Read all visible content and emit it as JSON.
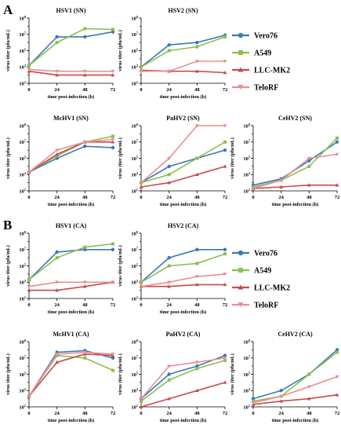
{
  "figure": {
    "panels": [
      {
        "letter": "A"
      },
      {
        "letter": "B"
      }
    ],
    "legend": {
      "entries": [
        {
          "name": "Vero76",
          "color": "#3b78b8",
          "marker": "circle"
        },
        {
          "name": "A549",
          "color": "#8bbf4e",
          "marker": "square"
        },
        {
          "name": "LLC-MK2",
          "color": "#c94a4a",
          "marker": "triangle"
        },
        {
          "name": "TeloRF",
          "color": "#e88e93",
          "marker": "triangle-down"
        }
      ]
    }
  },
  "chart_data": [
    {
      "panel": "A",
      "type": "line",
      "title": "HSV1 (SN)",
      "xlabel": "time post-infection (h)",
      "ylabel": "virus titer (pfu/mL)",
      "x": [
        0,
        24,
        48,
        72
      ],
      "xticks": [
        "0",
        "24",
        "48",
        "72"
      ],
      "ylog": true,
      "ylim_exp": [
        1,
        9
      ],
      "yticks_exp": [
        1,
        3,
        5,
        7,
        9
      ],
      "grid": false,
      "series": [
        {
          "name": "Vero76",
          "values": [
            1500.0,
            5000000.0,
            5000000.0,
            20000000.0
          ]
        },
        {
          "name": "A549",
          "values": [
            1500.0,
            1000000.0,
            50000000.0,
            40000000.0
          ]
        },
        {
          "name": "LLC-MK2",
          "values": [
            300.0,
            100.0,
            100.0,
            100.0
          ]
        },
        {
          "name": "TeloRF",
          "values": [
            500.0,
            300.0,
            300.0,
            300.0
          ]
        }
      ]
    },
    {
      "panel": "A",
      "type": "line",
      "title": "HSV2 (SN)",
      "xlabel": "time post-infection (h)",
      "ylabel": "virus titer (pfu/mL)",
      "x": [
        0,
        24,
        48,
        72
      ],
      "xticks": [
        "0",
        "24",
        "48",
        "72"
      ],
      "ylog": true,
      "ylim_exp": [
        1,
        9
      ],
      "yticks_exp": [
        1,
        3,
        5,
        7,
        9
      ],
      "grid": false,
      "series": [
        {
          "name": "Vero76",
          "values": [
            1000.0,
            500000.0,
            1000000.0,
            8000000.0
          ]
        },
        {
          "name": "A549",
          "values": [
            1000.0,
            100000.0,
            300000.0,
            5000000.0
          ]
        },
        {
          "name": "LLC-MK2",
          "values": [
            400.0,
            300.0,
            300.0,
            200.0
          ]
        },
        {
          "name": "TeloRF",
          "values": [
            300.0,
            300.0,
            5000.0,
            5000.0
          ]
        }
      ]
    },
    {
      "panel": "A",
      "type": "line",
      "title": "McHV1 (SN)",
      "xlabel": "time post-infection (h)",
      "ylabel": "virus titer (pfu/mL)",
      "x": [
        0,
        24,
        48,
        72
      ],
      "xticks": [
        "0",
        "24",
        "48",
        "72"
      ],
      "ylog": true,
      "ylim_exp": [
        1,
        9
      ],
      "yticks_exp": [
        1,
        3,
        5,
        7,
        9
      ],
      "grid": false,
      "series": [
        {
          "name": "Vero76",
          "values": [
            2000.0,
            100000.0,
            3000000.0,
            2000000.0
          ]
        },
        {
          "name": "A549",
          "values": [
            2000.0,
            200000.0,
            10000000.0,
            50000000.0
          ]
        },
        {
          "name": "LLC-MK2",
          "values": [
            2000.0,
            300000.0,
            10000000.0,
            10000000.0
          ]
        },
        {
          "name": "TeloRF",
          "values": [
            2000.0,
            1000000.0,
            10000000.0,
            20000000.0
          ]
        }
      ]
    },
    {
      "panel": "A",
      "type": "line",
      "title": "PaHV2 (SN)",
      "xlabel": "time post-infection (h)",
      "ylabel": "virus titer (pfu/mL)",
      "x": [
        0,
        24,
        48,
        72
      ],
      "xticks": [
        "0",
        "24",
        "48",
        "72"
      ],
      "ylog": true,
      "ylim_exp": [
        1,
        9
      ],
      "yticks_exp": [
        1,
        3,
        5,
        7,
        9
      ],
      "grid": false,
      "series": [
        {
          "name": "Vero76",
          "values": [
            100.0,
            10000.0,
            100000.0,
            1000000.0
          ]
        },
        {
          "name": "A549",
          "values": [
            100.0,
            1000.0,
            100000.0,
            10000000.0
          ]
        },
        {
          "name": "LLC-MK2",
          "values": [
            30.0,
            100.0,
            1000.0,
            10000.0
          ]
        },
        {
          "name": "TeloRF",
          "values": [
            100.0,
            100000.0,
            1000000000.0,
            1000000000.0
          ]
        }
      ]
    },
    {
      "panel": "A",
      "type": "line",
      "title": "CeHV2 (SN)",
      "xlabel": "time post-infection (h)",
      "ylabel": "virus titer (pfu/mL)",
      "x": [
        0,
        24,
        48,
        72
      ],
      "xticks": [
        "0",
        "24",
        "48",
        "72"
      ],
      "ylog": true,
      "ylim_exp": [
        1,
        9
      ],
      "yticks_exp": [
        1,
        3,
        5,
        7,
        9
      ],
      "grid": false,
      "series": [
        {
          "name": "Vero76",
          "values": [
            50.0,
            300.0,
            50000.0,
            10000000.0
          ]
        },
        {
          "name": "A549",
          "values": [
            30.0,
            200.0,
            10000.0,
            30000000.0
          ]
        },
        {
          "name": "LLC-MK2",
          "values": [
            20.0,
            30.0,
            50.0,
            50.0
          ]
        },
        {
          "name": "TeloRF",
          "values": [
            20.0,
            200.0,
            100000.0,
            300000.0
          ]
        }
      ]
    },
    {
      "panel": "B",
      "type": "line",
      "title": "HSV1 (CA)",
      "xlabel": "time post-infection (h)",
      "ylabel": "virus titer (pfu/mL)",
      "x": [
        0,
        24,
        48,
        72
      ],
      "xticks": [
        "0",
        "24",
        "48",
        "72"
      ],
      "ylog": true,
      "ylim_exp": [
        1,
        9
      ],
      "yticks_exp": [
        1,
        3,
        5,
        7,
        9
      ],
      "grid": false,
      "series": [
        {
          "name": "Vero76",
          "values": [
            2000.0,
            5000000.0,
            10000000.0,
            10000000.0
          ]
        },
        {
          "name": "A549",
          "values": [
            2000.0,
            1000000.0,
            20000000.0,
            50000000.0
          ]
        },
        {
          "name": "LLC-MK2",
          "values": [
            100.0,
            100.0,
            300.0,
            1000.0
          ]
        },
        {
          "name": "TeloRF",
          "values": [
            300.0,
            1000.0,
            1000.0,
            1000.0
          ]
        }
      ]
    },
    {
      "panel": "B",
      "type": "line",
      "title": "HSV2 (CA)",
      "xlabel": "time post-infection (h)",
      "ylabel": "virus titer (pfu/mL)",
      "x": [
        0,
        24,
        48,
        72
      ],
      "xticks": [
        "0",
        "24",
        "48",
        "72"
      ],
      "ylog": true,
      "ylim_exp": [
        1,
        9
      ],
      "yticks_exp": [
        1,
        3,
        5,
        7,
        9
      ],
      "grid": false,
      "series": [
        {
          "name": "Vero76",
          "values": [
            1000.0,
            1000000.0,
            10000000.0,
            10000000.0
          ]
        },
        {
          "name": "A549",
          "values": [
            1000.0,
            100000.0,
            200000.0,
            3000000.0
          ]
        },
        {
          "name": "LLC-MK2",
          "values": [
            300.0,
            300.0,
            500.0,
            500.0
          ]
        },
        {
          "name": "TeloRF",
          "values": [
            300.0,
            1000.0,
            5000.0,
            10000.0
          ]
        }
      ]
    },
    {
      "panel": "B",
      "type": "line",
      "title": "McHV1 (CA)",
      "xlabel": "time post-infection (h)",
      "ylabel": "virus titer (pfu/mL)",
      "x": [
        0,
        24,
        48,
        72
      ],
      "xticks": [
        "0",
        "24",
        "48",
        "72"
      ],
      "ylog": true,
      "ylim_exp": [
        1,
        9
      ],
      "yticks_exp": [
        1,
        3,
        5,
        7,
        9
      ],
      "grid": false,
      "series": [
        {
          "name": "Vero76",
          "values": [
            200.0,
            50000000.0,
            80000000.0,
            10000000.0
          ]
        },
        {
          "name": "A549",
          "values": [
            200.0,
            20000000.0,
            10000000.0,
            300000.0
          ]
        },
        {
          "name": "LLC-MK2",
          "values": [
            200.0,
            3000000.0,
            30000000.0,
            20000000.0
          ]
        },
        {
          "name": "TeloRF",
          "values": [
            200.0,
            30000000.0,
            50000000.0,
            30000000.0
          ]
        }
      ]
    },
    {
      "panel": "B",
      "type": "line",
      "title": "PaHV2 (CA)",
      "xlabel": "time post-infection (h)",
      "ylabel": "virus titer (pfu/mL)",
      "x": [
        0,
        24,
        48,
        72
      ],
      "xticks": [
        "0",
        "24",
        "48",
        "72"
      ],
      "ylog": true,
      "ylim_exp": [
        1,
        9
      ],
      "yticks_exp": [
        1,
        3,
        5,
        7,
        9
      ],
      "grid": false,
      "series": [
        {
          "name": "Vero76",
          "values": [
            100.0,
            100000.0,
            1000000.0,
            20000000.0
          ]
        },
        {
          "name": "A549",
          "values": [
            50.0,
            20000.0,
            500000.0,
            5000000.0
          ]
        },
        {
          "name": "LLC-MK2",
          "values": [
            10.0,
            100.0,
            1000.0,
            10000.0
          ]
        },
        {
          "name": "TeloRF",
          "values": [
            100.0,
            1000000.0,
            3000000.0,
            10000000.0
          ]
        }
      ]
    },
    {
      "panel": "B",
      "type": "line",
      "title": "CeHV2 (CA)",
      "xlabel": "time post-infection (h)",
      "ylabel": "virus titer (pfu/mL)",
      "x": [
        0,
        24,
        48,
        72
      ],
      "xticks": [
        "0",
        "24",
        "48",
        "72"
      ],
      "ylog": true,
      "ylim_exp": [
        1,
        9
      ],
      "yticks_exp": [
        1,
        3,
        5,
        7,
        9
      ],
      "grid": false,
      "series": [
        {
          "name": "Vero76",
          "values": [
            100.0,
            1000.0,
            100000.0,
            100000000.0
          ]
        },
        {
          "name": "A549",
          "values": [
            50.0,
            200.0,
            100000.0,
            50000000.0
          ]
        },
        {
          "name": "LLC-MK2",
          "values": [
            20.0,
            50.0,
            100.0,
            300.0
          ]
        },
        {
          "name": "TeloRF",
          "values": [
            30.0,
            200.0,
            3000.0,
            50000.0
          ]
        }
      ]
    }
  ]
}
